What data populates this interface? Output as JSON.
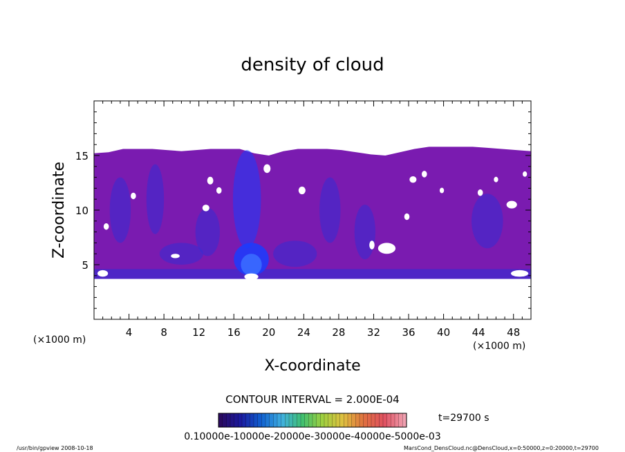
{
  "chart_data": {
    "type": "heatmap",
    "title": "density of cloud",
    "xlabel": "X-coordinate",
    "ylabel": "Z-coordinate",
    "x_unit": "(×1000 m)",
    "z_unit": "(×1000 m)",
    "xlim": [
      0,
      50
    ],
    "ylim": [
      0,
      20
    ],
    "x_ticks": [
      "4",
      "8",
      "12",
      "16",
      "20",
      "24",
      "28",
      "32",
      "36",
      "40",
      "44",
      "48"
    ],
    "y_ticks": [
      "5",
      "10",
      "15"
    ],
    "grid": false,
    "contour_interval": "CONTOUR INTERVAL = 2.000E-04",
    "time": "t=29700 s",
    "colorbar": {
      "label": "0.10000e-10000e-20000e-30000e-40000e-5000e-03",
      "colors": [
        "#2a0a60",
        "#1a1aa0",
        "#1060d0",
        "#40b0e0",
        "#40c070",
        "#a0d040",
        "#e0c040",
        "#e07040",
        "#e05060",
        "#f0a0b0"
      ]
    },
    "cloud_layer_z": [
      3.7,
      15.5
    ],
    "dense_core": {
      "x": [
        16,
        20
      ],
      "z": [
        4,
        7
      ]
    },
    "fill_colors": {
      "background": "#7a1bb0",
      "dense": "#1a3cff",
      "mid": "#3a2bd0"
    }
  },
  "footer": {
    "left": "/usr/bin/gpview   2008-10-18",
    "right": "MarsCond_DensCloud.nc@DensCloud,x=0:50000,z=0:20000,t=29700"
  }
}
